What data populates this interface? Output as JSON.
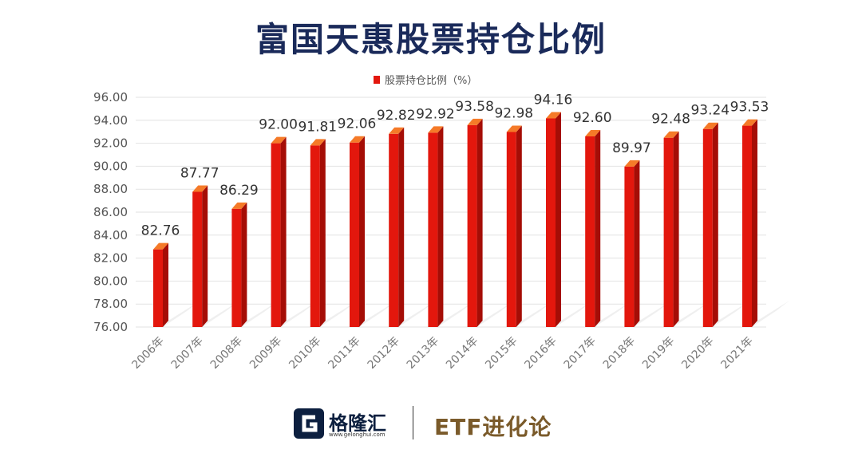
{
  "title": "富国天惠股票持仓比例",
  "legend_label": "股票持仓比例（%）",
  "colors": {
    "bar": "#e3170d",
    "bar_side": "#a50d06",
    "bar_top": "#f57a28",
    "title": "#1a2a5a"
  },
  "footer": {
    "logo_text": "格隆汇",
    "logo_url": "www.gelonghui.com",
    "brand2": "ETF进化论"
  },
  "chart_data": {
    "type": "bar",
    "title": "富国天惠股票持仓比例",
    "series": [
      {
        "name": "股票持仓比例（%）",
        "values": [
          82.76,
          87.77,
          86.29,
          92.0,
          91.81,
          92.06,
          92.82,
          92.92,
          93.58,
          92.98,
          94.16,
          92.6,
          89.97,
          92.48,
          93.24,
          93.53
        ]
      }
    ],
    "categories": [
      "2006年",
      "2007年",
      "2008年",
      "2009年",
      "2010年",
      "2011年",
      "2012年",
      "2013年",
      "2014年",
      "2015年",
      "2016年",
      "2017年",
      "2018年",
      "2019年",
      "2020年",
      "2021年"
    ],
    "value_labels": [
      "82.76",
      "87.77",
      "86.29",
      "92.00",
      "91.81",
      "92.06",
      "92.82",
      "92.92",
      "93.58",
      "92.98",
      "94.16",
      "92.60",
      "89.97",
      "92.48",
      "93.24",
      "93.53"
    ],
    "y_ticks": [
      "76.00",
      "78.00",
      "80.00",
      "82.00",
      "84.00",
      "86.00",
      "88.00",
      "90.00",
      "92.00",
      "94.00",
      "96.00"
    ],
    "ylim": [
      76,
      96
    ],
    "grid": true,
    "legend_position": "top-center"
  }
}
